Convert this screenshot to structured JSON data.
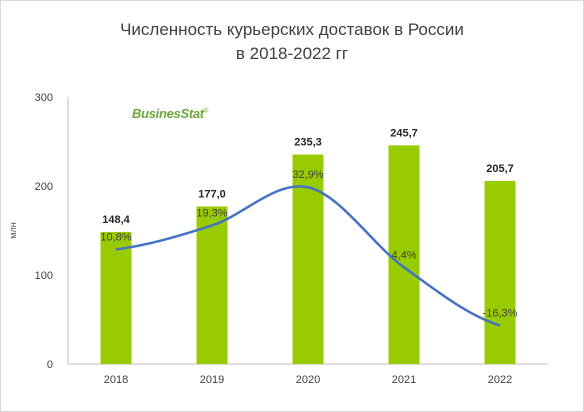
{
  "title": {
    "line1": "Численность курьерских доставок в России",
    "line2": "в 2018-2022 гг"
  },
  "logo": "BusinesStat",
  "colors": {
    "bar": "#99cc00",
    "line": "#4472c4",
    "axis": "#bfbfbf"
  },
  "chart_data": {
    "type": "bar",
    "categories": [
      "2018",
      "2019",
      "2020",
      "2021",
      "2022"
    ],
    "series": [
      {
        "values": [
          148.4,
          177.0,
          235.3,
          245.7,
          205.7
        ],
        "labels": [
          "148,4",
          "177,0",
          "235,3",
          "245,7",
          "205,7"
        ]
      }
    ],
    "growth": {
      "type": "line",
      "values": [
        10.8,
        19.3,
        32.9,
        4.4,
        -16.3
      ],
      "labels": [
        "10,8%",
        "19,3%",
        "32,9%",
        "4,4%",
        "-16,3%"
      ]
    },
    "ylabel": "млн",
    "ylim": [
      0,
      300
    ],
    "yticks": [
      0,
      100,
      200,
      300
    ],
    "grid": false,
    "legend": "none"
  }
}
